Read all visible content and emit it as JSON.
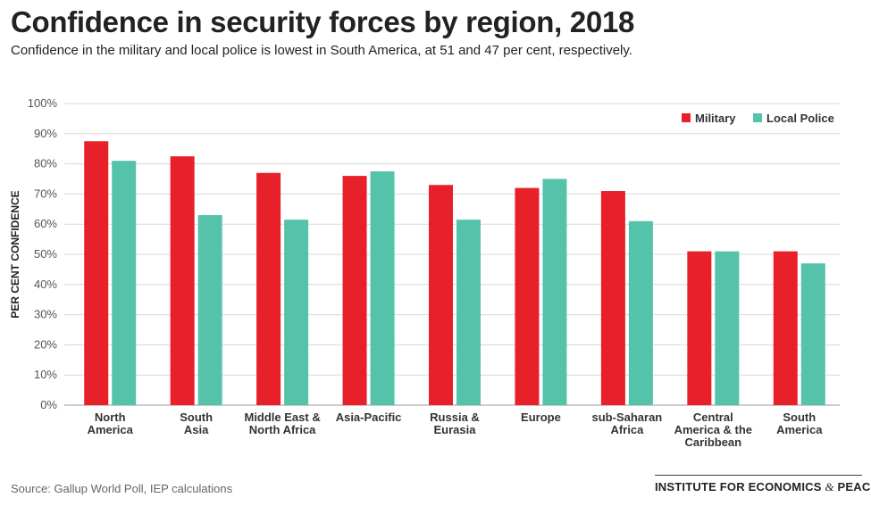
{
  "title": "Confidence in security forces by region, 2018",
  "subtitle": "Confidence in the military and local police is lowest in South America, at 51 and 47 per cent, respectively.",
  "source": "Source: Gallup World Poll, IEP calculations",
  "logo": {
    "text_main": "INSTITUTE FOR ECONOMICS",
    "amp": "&",
    "text_end": "PEACE"
  },
  "colors": {
    "military": "#e8202a",
    "police": "#55c2aa",
    "grid": "#d9d9d9",
    "axis": "#999999"
  },
  "chart_data": {
    "type": "bar",
    "categories": [
      [
        "North",
        "America"
      ],
      [
        "South",
        "Asia"
      ],
      [
        "Middle East &",
        "North Africa"
      ],
      [
        "Asia-Pacific"
      ],
      [
        "Russia &",
        "Eurasia"
      ],
      [
        "Europe"
      ],
      [
        "sub-Saharan",
        "Africa"
      ],
      [
        "Central",
        "America & the",
        "Caribbean"
      ],
      [
        "South",
        "America"
      ]
    ],
    "series": [
      {
        "name": "Military",
        "values": [
          87.5,
          82.5,
          77,
          76,
          73,
          72,
          71,
          51,
          51
        ]
      },
      {
        "name": "Local Police",
        "values": [
          81,
          63,
          61.5,
          77.5,
          61.5,
          75,
          61,
          51,
          47
        ]
      }
    ],
    "ylabel": "PER CENT CONFIDENCE",
    "ylim": [
      0,
      100
    ],
    "yticks": [
      0,
      10,
      20,
      30,
      40,
      50,
      60,
      70,
      80,
      90,
      100
    ],
    "ytick_labels": [
      "0%",
      "10%",
      "20%",
      "30%",
      "40%",
      "50%",
      "60%",
      "70%",
      "80%",
      "90%",
      "100%"
    ],
    "grid": true,
    "legend_position": "top-right"
  }
}
